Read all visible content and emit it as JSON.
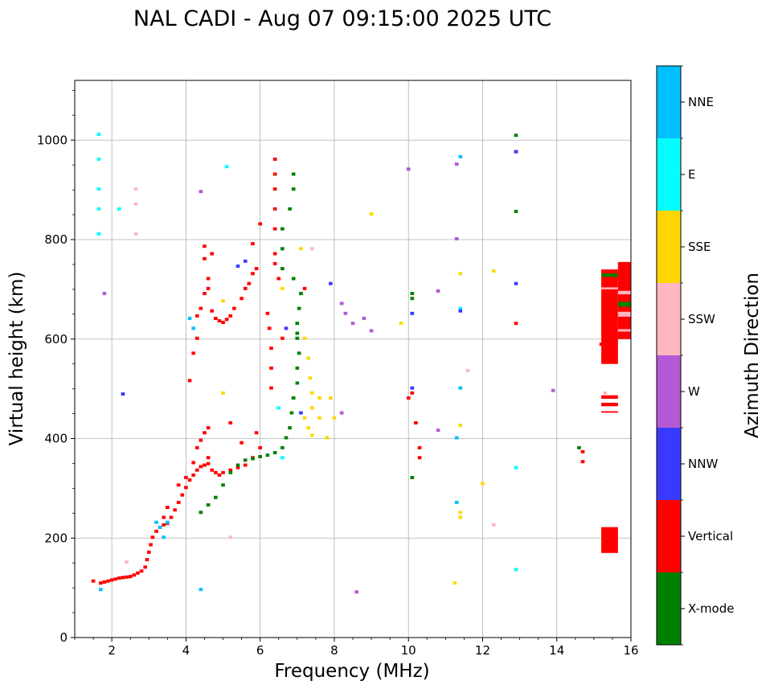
{
  "chart_data": {
    "type": "scatter",
    "title": "NAL CADI - Aug 07 09:15:00 2025 UTC",
    "xlabel": "Frequency (MHz)",
    "ylabel": "Virtual height (km)",
    "xlim": [
      1,
      16
    ],
    "ylim": [
      0,
      1120
    ],
    "xticks": [
      "2",
      "4",
      "6",
      "8",
      "10",
      "12",
      "14",
      "16"
    ],
    "yticks": [
      "0",
      "200",
      "400",
      "600",
      "800",
      "1000"
    ],
    "grid": true,
    "colorbar": {
      "label": "Azimuth Direction",
      "categories": [
        {
          "name": "X-mode",
          "color": "#008000"
        },
        {
          "name": "Vertical",
          "color": "#ff0000"
        },
        {
          "name": "NNW",
          "color": "#3a3aff"
        },
        {
          "name": "W",
          "color": "#b458d6"
        },
        {
          "name": "SSW",
          "color": "#ffb6c1"
        },
        {
          "name": "SSE",
          "color": "#ffd700"
        },
        {
          "name": "E",
          "color": "#00ffff"
        },
        {
          "name": "NNE",
          "color": "#00bfff"
        }
      ]
    },
    "series": [
      {
        "name": "Vertical",
        "color": "#ff0000",
        "points": [
          [
            1.5,
            112
          ],
          [
            1.7,
            108
          ],
          [
            1.8,
            110
          ],
          [
            1.9,
            112
          ],
          [
            2.0,
            114
          ],
          [
            2.1,
            116
          ],
          [
            2.2,
            118
          ],
          [
            2.3,
            119
          ],
          [
            2.4,
            120
          ],
          [
            2.5,
            121
          ],
          [
            2.6,
            124
          ],
          [
            2.7,
            128
          ],
          [
            2.8,
            132
          ],
          [
            2.9,
            140
          ],
          [
            2.95,
            155
          ],
          [
            3.0,
            170
          ],
          [
            3.05,
            185
          ],
          [
            3.1,
            200
          ],
          [
            3.2,
            212
          ],
          [
            3.3,
            220
          ],
          [
            3.4,
            225
          ],
          [
            3.5,
            228
          ],
          [
            3.6,
            240
          ],
          [
            3.7,
            255
          ],
          [
            3.8,
            270
          ],
          [
            3.9,
            285
          ],
          [
            4.0,
            300
          ],
          [
            4.1,
            315
          ],
          [
            4.2,
            325
          ],
          [
            4.3,
            335
          ],
          [
            4.4,
            342
          ],
          [
            4.5,
            345
          ],
          [
            4.6,
            348
          ],
          [
            4.7,
            335
          ],
          [
            4.8,
            330
          ],
          [
            4.9,
            325
          ],
          [
            5.0,
            330
          ],
          [
            5.2,
            335
          ],
          [
            5.4,
            340
          ],
          [
            5.6,
            345
          ],
          [
            5.8,
            360
          ],
          [
            6.0,
            380
          ],
          [
            4.3,
            380
          ],
          [
            4.4,
            395
          ],
          [
            4.5,
            410
          ],
          [
            4.6,
            420
          ],
          [
            5.2,
            430
          ],
          [
            5.5,
            390
          ],
          [
            5.9,
            410
          ],
          [
            3.8,
            305
          ],
          [
            4.0,
            320
          ],
          [
            3.5,
            260
          ],
          [
            3.4,
            240
          ],
          [
            4.2,
            350
          ],
          [
            4.6,
            360
          ],
          [
            4.1,
            515
          ],
          [
            4.2,
            570
          ],
          [
            4.3,
            600
          ],
          [
            4.3,
            645
          ],
          [
            4.4,
            660
          ],
          [
            4.5,
            690
          ],
          [
            4.6,
            700
          ],
          [
            4.6,
            720
          ],
          [
            4.5,
            760
          ],
          [
            4.7,
            770
          ],
          [
            4.5,
            785
          ],
          [
            4.7,
            655
          ],
          [
            4.8,
            640
          ],
          [
            4.9,
            635
          ],
          [
            5.0,
            632
          ],
          [
            5.1,
            638
          ],
          [
            5.2,
            645
          ],
          [
            5.3,
            660
          ],
          [
            5.5,
            680
          ],
          [
            5.6,
            700
          ],
          [
            5.7,
            710
          ],
          [
            5.8,
            730
          ],
          [
            5.9,
            740
          ],
          [
            5.8,
            790
          ],
          [
            6.0,
            830
          ],
          [
            6.2,
            650
          ],
          [
            6.25,
            620
          ],
          [
            6.3,
            580
          ],
          [
            6.3,
            540
          ],
          [
            6.3,
            500
          ],
          [
            6.4,
            960
          ],
          [
            6.4,
            930
          ],
          [
            6.4,
            900
          ],
          [
            6.4,
            860
          ],
          [
            6.4,
            820
          ],
          [
            6.4,
            770
          ],
          [
            6.4,
            750
          ],
          [
            6.5,
            720
          ],
          [
            6.6,
            600
          ],
          [
            6.9,
            480
          ],
          [
            7.2,
            700
          ],
          [
            10.0,
            480
          ],
          [
            10.2,
            430
          ],
          [
            10.3,
            380
          ],
          [
            10.3,
            360
          ],
          [
            10.1,
            490
          ],
          [
            12.9,
            630
          ],
          [
            14.7,
            372
          ],
          [
            14.7,
            352
          ],
          [
            15.2,
            588
          ]
        ]
      },
      {
        "name": "X-mode",
        "color": "#008000",
        "points": [
          [
            4.4,
            250
          ],
          [
            4.6,
            265
          ],
          [
            4.8,
            280
          ],
          [
            5.0,
            305
          ],
          [
            5.2,
            330
          ],
          [
            5.4,
            345
          ],
          [
            5.6,
            355
          ],
          [
            5.8,
            358
          ],
          [
            6.0,
            362
          ],
          [
            6.2,
            365
          ],
          [
            6.4,
            370
          ],
          [
            6.6,
            380
          ],
          [
            6.7,
            400
          ],
          [
            6.8,
            420
          ],
          [
            6.85,
            450
          ],
          [
            6.9,
            480
          ],
          [
            7.0,
            510
          ],
          [
            7.0,
            540
          ],
          [
            7.05,
            570
          ],
          [
            7.0,
            600
          ],
          [
            7.0,
            630
          ],
          [
            7.05,
            660
          ],
          [
            7.1,
            690
          ],
          [
            6.9,
            720
          ],
          [
            6.6,
            740
          ],
          [
            6.6,
            780
          ],
          [
            6.6,
            820
          ],
          [
            6.8,
            860
          ],
          [
            6.9,
            900
          ],
          [
            6.9,
            930
          ],
          [
            7.0,
            610
          ],
          [
            10.1,
            320
          ],
          [
            10.1,
            690
          ],
          [
            10.1,
            680
          ],
          [
            12.9,
            855
          ],
          [
            12.9,
            1008
          ],
          [
            14.6,
            380
          ]
        ]
      },
      {
        "name": "NNE",
        "color": "#00bfff",
        "points": [
          [
            1.7,
            95
          ],
          [
            3.2,
            230
          ],
          [
            3.3,
            220
          ],
          [
            3.4,
            200
          ],
          [
            3.5,
            230
          ],
          [
            4.1,
            640
          ],
          [
            4.2,
            620
          ],
          [
            4.4,
            95
          ],
          [
            11.4,
            500
          ],
          [
            11.4,
            965
          ],
          [
            11.3,
            270
          ],
          [
            11.3,
            400
          ]
        ]
      },
      {
        "name": "E",
        "color": "#00ffff",
        "points": [
          [
            1.65,
            810
          ],
          [
            1.65,
            860
          ],
          [
            1.65,
            900
          ],
          [
            1.65,
            960
          ],
          [
            1.65,
            1010
          ],
          [
            2.2,
            860
          ],
          [
            5.1,
            945
          ],
          [
            6.5,
            460
          ],
          [
            11.4,
            660
          ],
          [
            12.9,
            340
          ],
          [
            12.9,
            135
          ],
          [
            6.6,
            360
          ]
        ]
      },
      {
        "name": "SSE",
        "color": "#ffd700",
        "points": [
          [
            5.0,
            490
          ],
          [
            6.6,
            700
          ],
          [
            7.1,
            780
          ],
          [
            7.2,
            600
          ],
          [
            7.3,
            560
          ],
          [
            7.35,
            520
          ],
          [
            7.4,
            490
          ],
          [
            7.4,
            460
          ],
          [
            7.2,
            440
          ],
          [
            7.3,
            420
          ],
          [
            7.4,
            405
          ],
          [
            7.6,
            480
          ],
          [
            7.6,
            440
          ],
          [
            7.8,
            400
          ],
          [
            7.9,
            480
          ],
          [
            8.0,
            440
          ],
          [
            9.0,
            850
          ],
          [
            9.8,
            630
          ],
          [
            11.4,
            730
          ],
          [
            11.4,
            425
          ],
          [
            11.4,
            250
          ],
          [
            11.4,
            240
          ],
          [
            11.25,
            108
          ],
          [
            12.3,
            735
          ],
          [
            12.0,
            308
          ],
          [
            5.0,
            675
          ]
        ]
      },
      {
        "name": "W",
        "color": "#b458d6",
        "points": [
          [
            4.4,
            895
          ],
          [
            8.2,
            670
          ],
          [
            8.3,
            650
          ],
          [
            8.5,
            630
          ],
          [
            8.8,
            640
          ],
          [
            9.0,
            615
          ],
          [
            8.2,
            450
          ],
          [
            10.0,
            940
          ],
          [
            11.3,
            800
          ],
          [
            11.3,
            950
          ],
          [
            10.8,
            695
          ],
          [
            12.9,
            975
          ],
          [
            13.9,
            495
          ],
          [
            8.6,
            90
          ],
          [
            10.8,
            415
          ],
          [
            1.8,
            690
          ]
        ]
      },
      {
        "name": "NNW",
        "color": "#3a3aff",
        "points": [
          [
            2.3,
            488
          ],
          [
            5.4,
            745
          ],
          [
            5.6,
            755
          ],
          [
            6.7,
            620
          ],
          [
            7.1,
            450
          ],
          [
            10.1,
            650
          ],
          [
            10.1,
            500
          ],
          [
            12.9,
            710
          ],
          [
            12.9,
            975
          ],
          [
            11.4,
            655
          ],
          [
            7.9,
            710
          ]
        ]
      },
      {
        "name": "SSW",
        "color": "#ffb6c1",
        "points": [
          [
            2.65,
            900
          ],
          [
            2.65,
            870
          ],
          [
            2.65,
            810
          ],
          [
            2.4,
            150
          ],
          [
            5.2,
            200
          ],
          [
            7.4,
            780
          ],
          [
            11.6,
            535
          ],
          [
            15.3,
            490
          ],
          [
            15.5,
            640
          ],
          [
            15.5,
            680
          ],
          [
            15.5,
            720
          ],
          [
            12.3,
            225
          ]
        ]
      }
    ],
    "bands": [
      {
        "series": "Vertical",
        "x0": 15.2,
        "x1": 15.65,
        "y0": 550,
        "y1": 740
      },
      {
        "series": "Vertical",
        "x0": 15.2,
        "x1": 15.65,
        "y0": 170,
        "y1": 222
      },
      {
        "series": "Vertical",
        "x0": 15.65,
        "x1": 16,
        "y0": 600,
        "y1": 755
      },
      {
        "series": "Vertical",
        "x0": 15.2,
        "x1": 15.65,
        "y0": 480,
        "y1": 487
      },
      {
        "series": "Vertical",
        "x0": 15.2,
        "x1": 15.65,
        "y0": 465,
        "y1": 472
      },
      {
        "series": "Vertical",
        "x0": 15.2,
        "x1": 15.65,
        "y0": 452,
        "y1": 455
      },
      {
        "series": "X-mode",
        "x0": 15.65,
        "x1": 16,
        "y0": 665,
        "y1": 675
      },
      {
        "series": "X-mode",
        "x0": 15.2,
        "x1": 15.65,
        "y0": 725,
        "y1": 732
      },
      {
        "series": "SSW",
        "x0": 15.65,
        "x1": 16,
        "y0": 645,
        "y1": 655
      },
      {
        "series": "SSW",
        "x0": 15.65,
        "x1": 16,
        "y0": 690,
        "y1": 697
      },
      {
        "series": "SSW",
        "x0": 15.65,
        "x1": 16,
        "y0": 615,
        "y1": 620
      },
      {
        "series": "SSW",
        "x0": 15.2,
        "x1": 15.65,
        "y0": 700,
        "y1": 704
      }
    ]
  }
}
